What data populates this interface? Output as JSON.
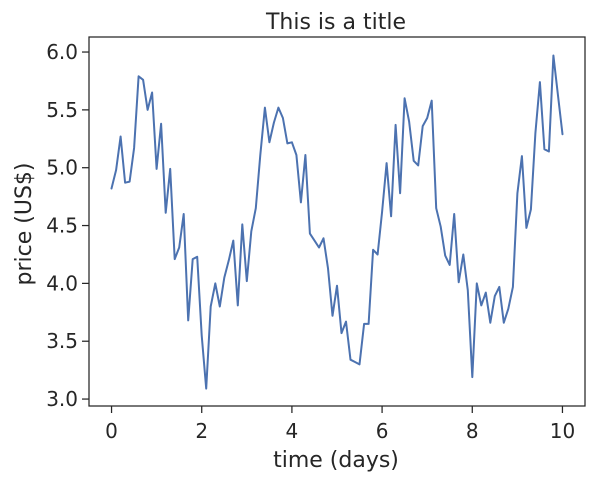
{
  "chart_data": {
    "type": "line",
    "title": "This is a title",
    "xlabel": "time (days)",
    "ylabel": "price (US$)",
    "xlim": [
      -0.5,
      10.5
    ],
    "ylim": [
      2.94,
      6.13
    ],
    "xticks": [
      0,
      2,
      4,
      6,
      8,
      10
    ],
    "xtick_labels": [
      "0",
      "2",
      "4",
      "6",
      "8",
      "10"
    ],
    "yticks": [
      3.0,
      3.5,
      4.0,
      4.5,
      5.0,
      5.5,
      6.0
    ],
    "ytick_labels": [
      "3.0",
      "3.5",
      "4.0",
      "4.5",
      "5.0",
      "5.5",
      "6.0"
    ],
    "grid": false,
    "line_color": "#4c72b0",
    "series": [
      {
        "x": [
          0.0,
          0.1,
          0.2,
          0.3,
          0.4,
          0.5,
          0.6,
          0.7,
          0.8,
          0.9,
          1.0,
          1.1,
          1.2,
          1.3,
          1.4,
          1.5,
          1.6,
          1.7,
          1.8,
          1.9,
          2.0,
          2.1,
          2.2,
          2.3,
          2.4,
          2.5,
          2.6,
          2.7,
          2.8,
          2.9,
          3.0,
          3.1,
          3.2,
          3.3,
          3.4,
          3.5,
          3.6,
          3.7,
          3.8,
          3.9,
          4.0,
          4.1,
          4.2,
          4.3,
          4.4,
          4.5,
          4.6,
          4.7,
          4.8,
          4.9,
          5.0,
          5.1,
          5.2,
          5.3,
          5.4,
          5.5,
          5.6,
          5.7,
          5.8,
          5.9,
          6.0,
          6.1,
          6.2,
          6.3,
          6.4,
          6.5,
          6.6,
          6.7,
          6.8,
          6.9,
          7.0,
          7.1,
          7.2,
          7.3,
          7.4,
          7.5,
          7.6,
          7.7,
          7.8,
          7.9,
          8.0,
          8.1,
          8.2,
          8.3,
          8.4,
          8.5,
          8.6,
          8.7,
          8.8,
          8.9,
          9.0,
          9.1,
          9.2,
          9.3,
          9.4,
          9.5,
          9.6,
          9.7,
          9.8,
          9.9,
          10.0
        ],
        "y": [
          4.82,
          4.98,
          5.27,
          4.87,
          4.88,
          5.17,
          5.79,
          5.76,
          5.5,
          5.65,
          4.99,
          5.38,
          4.61,
          4.99,
          4.21,
          4.31,
          4.6,
          3.68,
          4.21,
          4.23,
          3.55,
          3.09,
          3.8,
          4.0,
          3.8,
          4.05,
          4.2,
          4.37,
          3.81,
          4.51,
          4.02,
          4.45,
          4.65,
          5.11,
          5.52,
          5.22,
          5.39,
          5.52,
          5.43,
          5.21,
          5.22,
          5.11,
          4.7,
          5.11,
          4.43,
          4.37,
          4.31,
          4.39,
          4.13,
          3.72,
          3.98,
          3.57,
          3.67,
          3.34,
          3.32,
          3.3,
          3.65,
          3.65,
          4.29,
          4.25,
          4.62,
          5.04,
          4.58,
          5.37,
          4.78,
          5.6,
          5.4,
          5.06,
          5.02,
          5.36,
          5.43,
          5.58,
          4.65,
          4.49,
          4.24,
          4.16,
          4.6,
          4.01,
          4.25,
          3.94,
          3.19,
          4.0,
          3.81,
          3.92,
          3.66,
          3.89,
          3.97,
          3.66,
          3.78,
          3.97,
          4.78,
          5.1,
          4.48,
          4.64,
          5.3,
          5.74,
          5.16,
          5.14,
          5.97,
          5.63,
          5.29
        ]
      }
    ]
  }
}
